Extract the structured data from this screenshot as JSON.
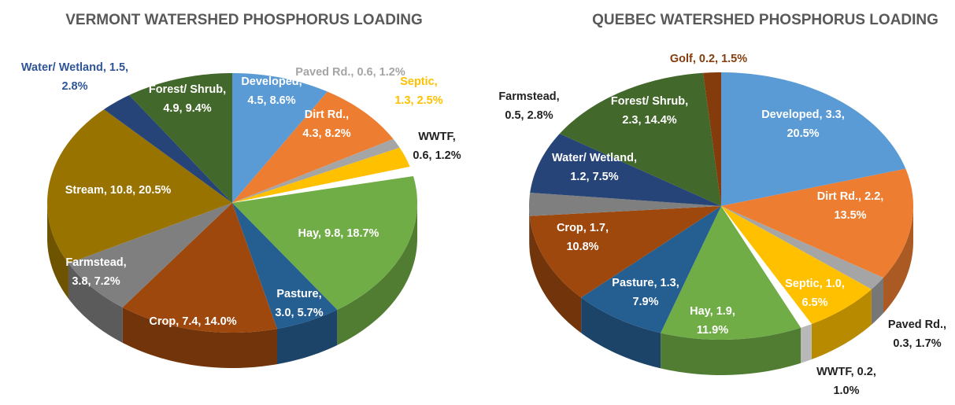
{
  "chart_data": [
    {
      "type": "pie",
      "title": "VERMONT WATERSHED PHOSPHORUS LOADING",
      "values": [
        8.6,
        8.2,
        1.2,
        2.5,
        1.2,
        18.7,
        5.7,
        14.0,
        7.2,
        20.5,
        2.8,
        9.4
      ],
      "value_labels": [
        [
          "Developed,",
          "4.5, 8.6%"
        ],
        [
          "Dirt Rd.,",
          "4.3, 8.2%"
        ],
        [
          "Paved Rd., 0.6, 1.2%"
        ],
        [
          "Septic,",
          "1.3, 2.5%"
        ],
        [
          "WWTF,",
          "0.6, 1.2%"
        ],
        [
          "Hay, 9.8, 18.7%"
        ],
        [
          "Pasture,",
          "3.0, 5.7%"
        ],
        [
          "Crop, 7.4, 14.0%"
        ],
        [
          "Farmstead,",
          "3.8, 7.2%"
        ],
        [
          "Stream, 10.8, 20.5%"
        ],
        [
          "Water/ Wetland, 1.5,",
          "2.8%"
        ],
        [
          "Forest/ Shrub,",
          "4.9, 9.4%"
        ]
      ],
      "colors": [
        "#5b9bd5",
        "#ed7d31",
        "#a5a5a5",
        "#ffc000",
        "#ffffff",
        "#70ad47",
        "#255e91",
        "#9e480e",
        "#7f7f7f",
        "#997300",
        "#264478",
        "#43682b"
      ]
    },
    {
      "type": "pie",
      "title": "QUEBEC WATERSHED PHOSPHORUS LOADING",
      "values": [
        20.5,
        13.5,
        1.7,
        6.5,
        1.0,
        11.9,
        7.9,
        10.8,
        2.8,
        7.5,
        14.4,
        1.5
      ],
      "value_labels": [
        [
          "Developed, 3.3,",
          "20.5%"
        ],
        [
          "Dirt Rd., 2.2,",
          "13.5%"
        ],
        [
          "Paved Rd.,",
          "0.3, 1.7%"
        ],
        [
          "Septic, 1.0,",
          "6.5%"
        ],
        [
          "WWTF, 0.2,",
          "1.0%"
        ],
        [
          "Hay, 1.9,",
          "11.9%"
        ],
        [
          "Pasture, 1.3,",
          "7.9%"
        ],
        [
          "Crop, 1.7,",
          "10.8%"
        ],
        [
          "Farmstead,",
          "0.5, 2.8%"
        ],
        [
          "Water/ Wetland,",
          "1.2, 7.5%"
        ],
        [
          "Forest/ Shrub,",
          "2.3, 14.4%"
        ],
        [
          "Golf, 0.2, 1.5%"
        ]
      ],
      "colors": [
        "#5b9bd5",
        "#ed7d31",
        "#a5a5a5",
        "#ffc000",
        "#ffffff",
        "#70ad47",
        "#255e91",
        "#9e480e",
        "#7f7f7f",
        "#264478",
        "#43682b",
        "#843c0c"
      ]
    }
  ]
}
